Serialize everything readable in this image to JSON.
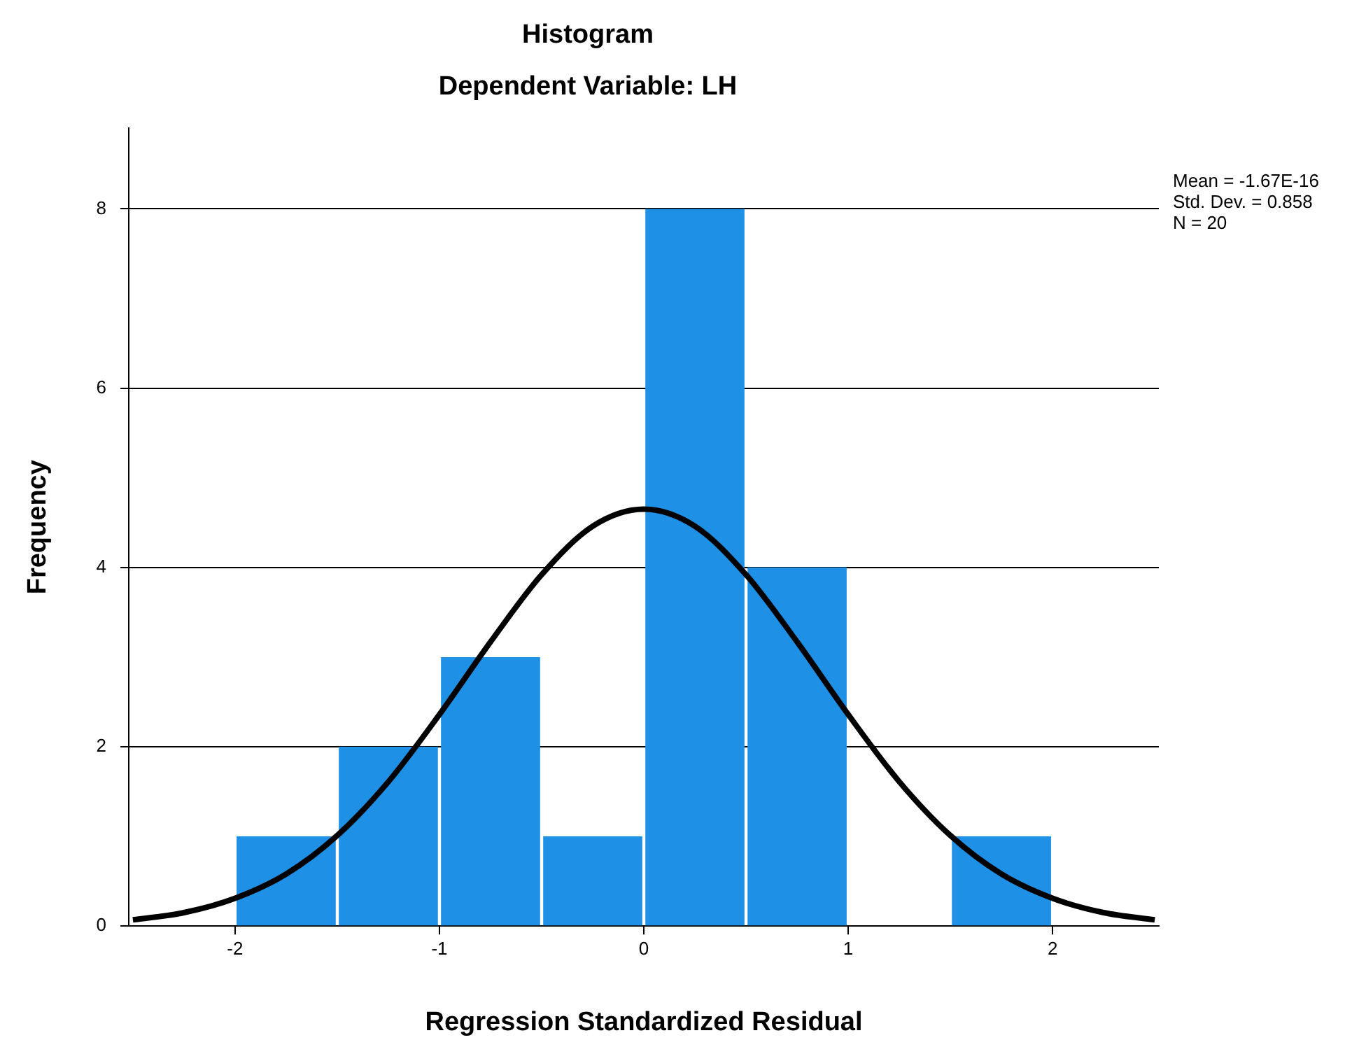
{
  "chart_data": {
    "type": "histogram",
    "title": "Histogram",
    "subtitle": "Dependent Variable: LH",
    "xlabel": "Regression Standardized Residual",
    "ylabel": "Frequency",
    "bins": [
      -2,
      -1.5,
      -1,
      -0.5,
      0,
      0.5,
      1,
      1.5,
      2
    ],
    "values": [
      1,
      2,
      3,
      1,
      8,
      4,
      0,
      1
    ],
    "color": "#1e90e6",
    "series": [
      {
        "type": "line",
        "color": "#000000",
        "x": [
          -2.5,
          -2.25,
          -2,
          -1.75,
          -1.5,
          -1.25,
          -1,
          -0.75,
          -0.5,
          -0.25,
          0,
          0.25,
          0.5,
          0.75,
          1,
          1.25,
          1.5,
          1.75,
          2,
          2.25,
          2.5
        ],
        "values": [
          0.07,
          0.15,
          0.31,
          0.58,
          1.01,
          1.61,
          2.36,
          3.17,
          3.92,
          4.46,
          4.65,
          4.46,
          3.92,
          3.17,
          2.36,
          1.61,
          1.01,
          0.58,
          0.31,
          0.15,
          0.07
        ]
      }
    ],
    "xlim": [
      -2.52,
      2.52
    ],
    "xticks": [
      -2,
      -1,
      0,
      1,
      2
    ],
    "ylim": [
      0,
      8.9
    ],
    "yticks": [
      0,
      2,
      4,
      6,
      8
    ],
    "grid": "y",
    "legend": false,
    "marker": "none",
    "line_style": "solid",
    "annotations": [
      "Mean = -1.67E-16",
      "Std. Dev. = 0.858",
      "N = 20"
    ]
  }
}
